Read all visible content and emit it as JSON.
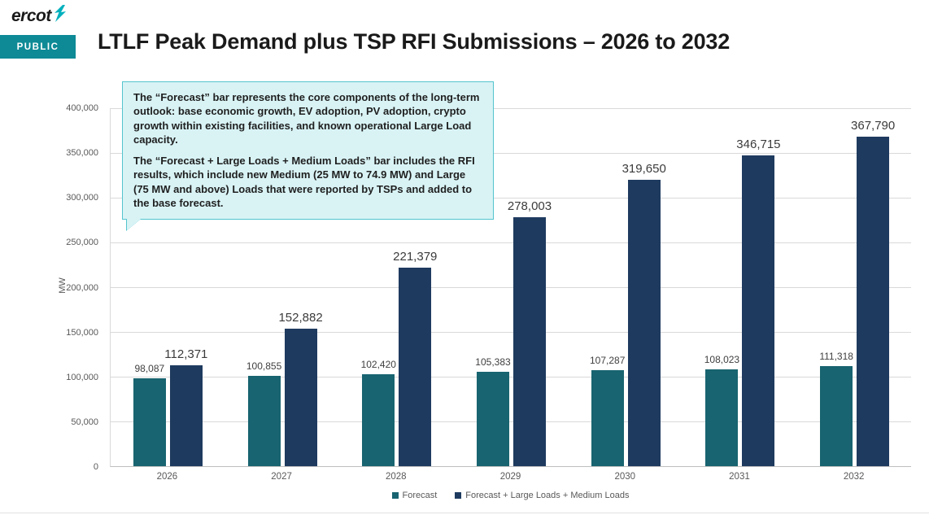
{
  "header": {
    "logo_text": "ercot",
    "badge": "PUBLIC",
    "title": "LTLF Peak Demand plus TSP RFI Submissions – 2026 to 2032"
  },
  "callout": {
    "paragraph1": "The “Forecast” bar represents the core components of the long-term outlook: base economic growth, EV adoption, PV adoption, crypto growth within existing facilities, and known operational Large Load capacity.",
    "paragraph2": "The “Forecast + Large Loads + Medium Loads” bar includes the RFI results, which include new Medium (25 MW to 74.9 MW) and Large (75 MW and above) Loads that were reported by TSPs and added to the base forecast."
  },
  "chart_data": {
    "type": "bar",
    "title": "LTLF Peak Demand plus TSP RFI Submissions – 2026 to 2032",
    "categories": [
      "2026",
      "2027",
      "2028",
      "2029",
      "2030",
      "2031",
      "2032"
    ],
    "series": [
      {
        "name": "Forecast",
        "color": "#186470",
        "values": [
          98087,
          100855,
          102420,
          105383,
          107287,
          108023,
          111318
        ]
      },
      {
        "name": "Forecast + Large Loads + Medium Loads",
        "color": "#1e3a5f",
        "values": [
          112371,
          152882,
          221379,
          278003,
          319650,
          346715,
          367790
        ]
      }
    ],
    "xlabel": "",
    "ylabel": "MW",
    "ylim": [
      0,
      400000
    ],
    "yticks": [
      0,
      50000,
      100000,
      150000,
      200000,
      250000,
      300000,
      350000,
      400000
    ],
    "grid": true,
    "legend_position": "bottom"
  },
  "colors": {
    "accent_teal": "#0d8a96",
    "callout_bg": "#d9f3f5",
    "callout_border": "#54c4ce",
    "gridline": "#d9d9d9",
    "axis_text": "#595959",
    "data_label_text": "#404040"
  }
}
